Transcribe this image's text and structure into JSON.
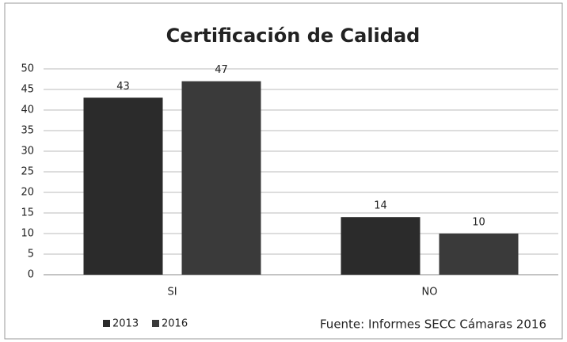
{
  "chart_data": {
    "type": "bar",
    "title": "Certificación de Calidad",
    "categories": [
      "SI",
      "NO"
    ],
    "series": [
      {
        "name": "2013",
        "color": "#2b2b2b",
        "values": [
          43,
          14
        ]
      },
      {
        "name": "2016",
        "color": "#3a3a3a",
        "values": [
          47,
          10
        ]
      }
    ],
    "ylim": [
      0,
      50
    ],
    "yticks": [
      0,
      5,
      10,
      15,
      20,
      25,
      30,
      35,
      40,
      45,
      50
    ],
    "grid": true,
    "legend": "bottom-left",
    "annotation": "Fuente: Informes SECC Cámaras 2016"
  }
}
